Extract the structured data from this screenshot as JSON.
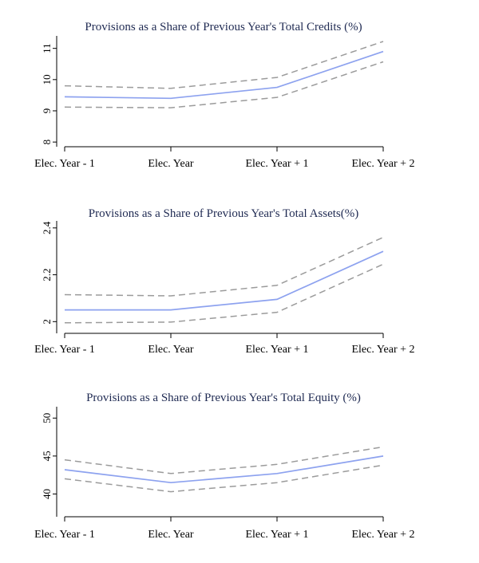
{
  "chart_data": [
    {
      "type": "line",
      "title": "Provisions as a Share of Previous Year's Total Credits (%)",
      "categories": [
        "Elec. Year - 1",
        "Elec. Year",
        "Elec. Year + 1",
        "Elec. Year + 2"
      ],
      "series": [
        {
          "values": [
            9.45,
            9.4,
            9.75,
            10.9
          ]
        },
        {
          "values": [
            9.8,
            9.72,
            10.07,
            11.22
          ]
        },
        {
          "values": [
            9.12,
            9.1,
            9.43,
            10.57
          ]
        }
      ],
      "ylim": [
        7.85,
        11.4
      ],
      "yticks": [
        8,
        9,
        10,
        11
      ],
      "ytick_labels": [
        "8",
        "9",
        "10",
        "11"
      ],
      "grid": false,
      "colors": {
        "estimate": "#8da2ef",
        "confidence_band": "#9b9b9b",
        "title": "#1f2a52"
      }
    },
    {
      "type": "line",
      "title": "Provisions as a Share of Previous Year's Total Assets(%)",
      "categories": [
        "Elec. Year - 1",
        "Elec. Year",
        "Elec. Year + 1",
        "Elec. Year + 2"
      ],
      "series": [
        {
          "values": [
            2.05,
            2.05,
            2.095,
            2.3
          ]
        },
        {
          "values": [
            2.115,
            2.11,
            2.155,
            2.36
          ]
        },
        {
          "values": [
            1.995,
            1.998,
            2.04,
            2.245
          ]
        }
      ],
      "ylim": [
        1.95,
        2.43
      ],
      "yticks": [
        2.0,
        2.2,
        2.4
      ],
      "ytick_labels": [
        "2",
        "2.2",
        "2.4"
      ],
      "grid": false,
      "colors": {
        "estimate": "#8da2ef",
        "confidence_band": "#9b9b9b",
        "title": "#1f2a52"
      }
    },
    {
      "type": "line",
      "title": "Provisions as a Share of Previous Year's Total Equity (%)",
      "categories": [
        "Elec. Year - 1",
        "Elec. Year",
        "Elec. Year + 1",
        "Elec. Year + 2"
      ],
      "series": [
        {
          "values": [
            43.2,
            41.5,
            42.7,
            45.0
          ]
        },
        {
          "values": [
            44.5,
            42.7,
            43.9,
            46.2
          ]
        },
        {
          "values": [
            42.0,
            40.3,
            41.5,
            43.8
          ]
        }
      ],
      "ylim": [
        37.0,
        51.5
      ],
      "yticks": [
        40,
        45,
        50
      ],
      "ytick_labels": [
        "40",
        "45",
        "50"
      ],
      "grid": false,
      "colors": {
        "estimate": "#8da2ef",
        "confidence_band": "#9b9b9b",
        "title": "#1f2a52"
      }
    }
  ]
}
